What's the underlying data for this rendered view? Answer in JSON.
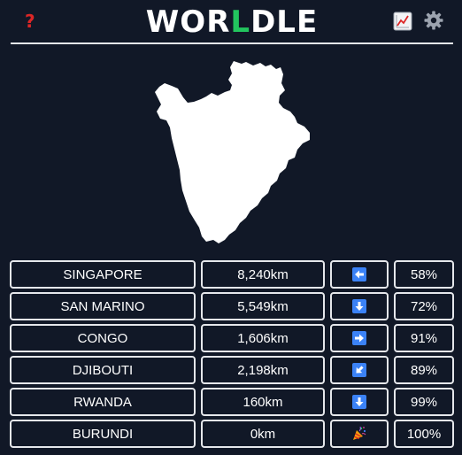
{
  "header": {
    "help_icon": "question-mark",
    "title_parts": [
      "WOR",
      "L",
      "DLE"
    ],
    "stats_icon": "chart-line-icon",
    "settings_icon": "gear-icon"
  },
  "colors": {
    "background": "#111827",
    "border": "#e5e7eb",
    "title_accent": "#22c55e",
    "help": "#dc2626",
    "arrow_tile": "#3b82f6"
  },
  "map": {
    "country_shape": "burundi-silhouette"
  },
  "guesses": [
    {
      "country": "SINGAPORE",
      "distance": "8,240km",
      "direction": "west",
      "proximity": "58%"
    },
    {
      "country": "SAN MARINO",
      "distance": "5,549km",
      "direction": "south",
      "proximity": "72%"
    },
    {
      "country": "CONGO",
      "distance": "1,606km",
      "direction": "east",
      "proximity": "91%"
    },
    {
      "country": "DJIBOUTI",
      "distance": "2,198km",
      "direction": "south-west",
      "proximity": "89%"
    },
    {
      "country": "RWANDA",
      "distance": "160km",
      "direction": "south",
      "proximity": "99%"
    },
    {
      "country": "BURUNDI",
      "distance": "0km",
      "direction": "correct",
      "proximity": "100%"
    }
  ]
}
